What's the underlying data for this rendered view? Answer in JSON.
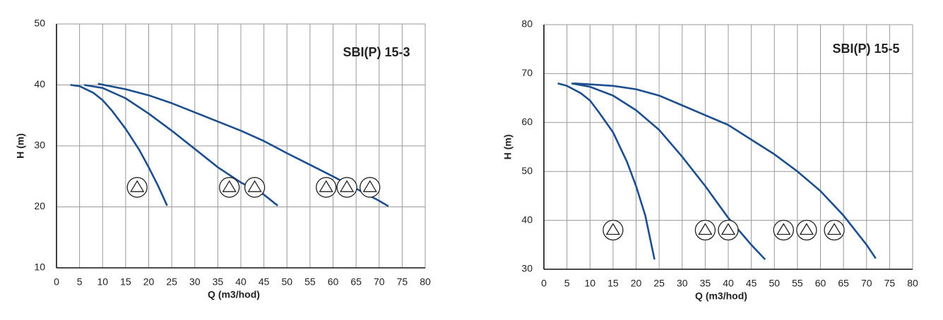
{
  "chart_data": [
    {
      "type": "line",
      "title": "SBI(P) 15-3",
      "x_label": "Q (m3/hod)",
      "y_label": "H (m)",
      "xlim": [
        0,
        80
      ],
      "ylim": [
        10,
        50
      ],
      "xticks": [
        0,
        5,
        10,
        15,
        20,
        25,
        30,
        35,
        40,
        45,
        50,
        55,
        60,
        65,
        70,
        75,
        80
      ],
      "yticks": [
        10,
        20,
        30,
        40,
        50
      ],
      "grid": true,
      "series": [
        {
          "color": "#1d4f8e",
          "x": [
            3,
            5,
            8,
            10,
            12,
            15,
            18,
            20,
            22,
            24
          ],
          "values": [
            40,
            39.8,
            38.7,
            37.5,
            35.8,
            32.8,
            29.3,
            26.5,
            23.5,
            20.2
          ]
        },
        {
          "color": "#1d4f8e",
          "x": [
            6,
            10,
            15,
            20,
            25,
            30,
            35,
            40,
            45,
            48
          ],
          "values": [
            40,
            39.5,
            37.8,
            35.3,
            32.5,
            29.5,
            26.5,
            24,
            22,
            20.2
          ]
        },
        {
          "color": "#1d4f8e",
          "x": [
            9,
            15,
            20,
            25,
            30,
            35,
            40,
            45,
            50,
            55,
            60,
            65,
            70,
            72
          ],
          "values": [
            40.2,
            39.3,
            38.3,
            37,
            35.5,
            34,
            32.5,
            30.8,
            28.8,
            26.9,
            25,
            23,
            21,
            20.1
          ]
        }
      ]
    },
    {
      "type": "line",
      "title": "SBI(P) 15-5",
      "x_label": "Q (m3/hod)",
      "y_label": "H (m)",
      "xlim": [
        0,
        80
      ],
      "ylim": [
        30,
        80
      ],
      "xticks": [
        0,
        5,
        10,
        15,
        20,
        25,
        30,
        35,
        40,
        45,
        50,
        55,
        60,
        65,
        70,
        75,
        80
      ],
      "yticks": [
        30,
        40,
        50,
        60,
        70,
        80
      ],
      "grid": true,
      "series": [
        {
          "color": "#1d4f8e",
          "x": [
            3,
            5,
            8,
            10,
            12,
            15,
            18,
            20,
            22,
            24
          ],
          "values": [
            68,
            67.5,
            66,
            64.5,
            62,
            58,
            52,
            47,
            41,
            32
          ]
        },
        {
          "color": "#1d4f8e",
          "x": [
            6,
            10,
            15,
            20,
            25,
            30,
            35,
            40,
            45,
            48
          ],
          "values": [
            68,
            67.3,
            65.5,
            62.5,
            58.5,
            53,
            47,
            40.5,
            35,
            32
          ]
        },
        {
          "color": "#1d4f8e",
          "x": [
            6.5,
            10,
            15,
            20,
            25,
            30,
            35,
            40,
            45,
            50,
            55,
            60,
            65,
            70,
            72
          ],
          "values": [
            68,
            67.8,
            67.5,
            66.8,
            65.5,
            63.5,
            61.5,
            59.5,
            56.5,
            53.5,
            50,
            46,
            41,
            35,
            32.2
          ]
        }
      ]
    }
  ]
}
